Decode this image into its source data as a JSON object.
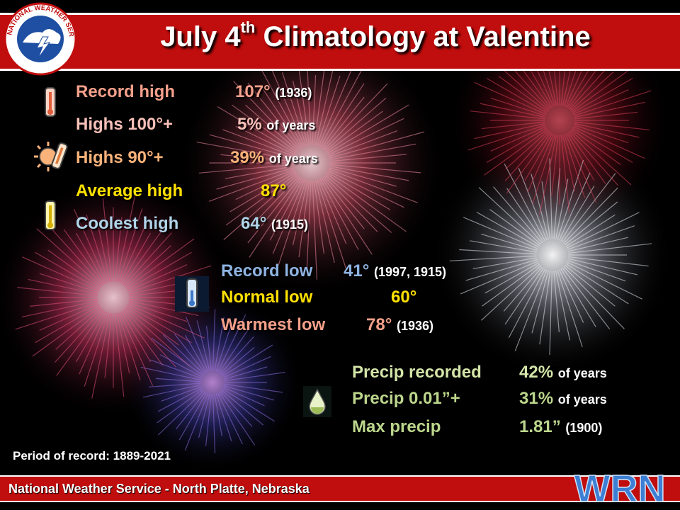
{
  "title": {
    "main": "July 4",
    "sup": "th",
    "rest": " Climatology at Valentine"
  },
  "logo_text": "NATIONAL WEATHER SERVICE",
  "highs": [
    {
      "label": "Record high",
      "value": "107°",
      "note": "(1936)"
    },
    {
      "label": "Highs 100°+",
      "value": "5%",
      "note": "of years"
    },
    {
      "label": "Highs 90°+",
      "value": "39%",
      "note": "of years"
    },
    {
      "label": "Average high",
      "value": "87°",
      "note": ""
    },
    {
      "label": "Coolest high",
      "value": "64°",
      "note": "(1915)"
    }
  ],
  "lows": [
    {
      "label": "Record low",
      "value": "41°",
      "note": "(1997, 1915)"
    },
    {
      "label": "Normal low",
      "value": "60°",
      "note": ""
    },
    {
      "label": "Warmest low",
      "value": "78°",
      "note": "(1936)"
    }
  ],
  "precip": [
    {
      "label": "Precip recorded",
      "value": "42%",
      "note": "of years"
    },
    {
      "label": "Precip 0.01”+",
      "value": "31%",
      "note": "of years"
    },
    {
      "label": "Max precip",
      "value": "1.81”",
      "note": "(1900)"
    }
  ],
  "period": "Period of record: 1889-2021",
  "footer": "National Weather Service - North Platte, Nebraska",
  "wrn_logo": "WRN",
  "colors": {
    "banner_red": "#c00d0d",
    "record_high": "#f4a08a",
    "highs_100": "#f7c0b8",
    "highs_90": "#f9b27a",
    "average_high": "#ffe100",
    "coolest_high": "#b0d4e8",
    "record_low": "#8fb4e3",
    "normal_low": "#ffe100",
    "warmest_low": "#f4a08a",
    "precip_recorded": "#d3e5a8",
    "precip_001": "#bcd68c",
    "max_precip": "#bcd68c"
  },
  "icons": [
    "thermometer-hot-icon",
    "sun-thermometer-icon",
    "thermometer-yellow-icon",
    "thermometer-cold-icon",
    "raindrop-icon"
  ]
}
